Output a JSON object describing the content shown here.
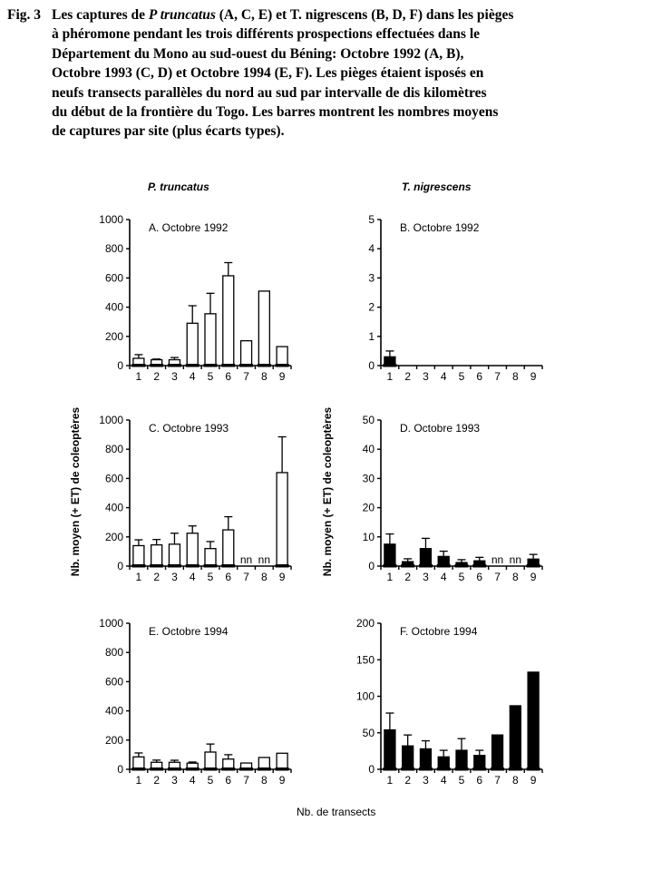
{
  "figure": {
    "caption": {
      "label": "Fig. 3",
      "line1_pre": "Les captures de ",
      "line1_italic": "P truncatus",
      "line1_post": " (A, C, E) et T. nigrescens (B, D, F) dans les pièges",
      "rest": "\nà phéromone pendant les trois différents prospections effectuées dans le\nDépartement du Mono au sud-ouest du Béning: Octobre 1992 (A, B),\nOctobre 1993 (C, D) et Octobre 1994 (E, F). Les pièges étaient isposés en\nneufs transects parallèles du nord au sud par intervalle de dis kilomètres\ndu début de la frontière du Togo. Les barres montrent les nombres moyens\nde captures par site (plus écarts types)."
    },
    "column_titles": {
      "left": "P. truncatus",
      "right": "T. nigrescens"
    },
    "y_axis_label": "Nb. moyen (+ ET) de coleoptères",
    "x_axis_label": "Nb. de transects",
    "colors": {
      "background": "#ffffff",
      "axis": "#000000",
      "bar_open": "#ffffff",
      "bar_filled": "#000000",
      "text": "#000000"
    }
  },
  "chart_data": [
    {
      "id": "A",
      "type": "bar",
      "panel_label": "A. Octobre 1992",
      "species": "P. truncatus",
      "bar_style": "open",
      "categories": [
        "1",
        "2",
        "3",
        "4",
        "5",
        "6",
        "7",
        "8",
        "9"
      ],
      "values": [
        50,
        40,
        40,
        290,
        355,
        615,
        170,
        510,
        130
      ],
      "errors_plus": [
        25,
        5,
        15,
        120,
        140,
        90,
        null,
        null,
        null
      ],
      "ylim": [
        0,
        1000
      ],
      "yticks": [
        0,
        200,
        400,
        600,
        800,
        1000
      ],
      "no_data_label": "nn"
    },
    {
      "id": "B",
      "type": "bar",
      "panel_label": "B. Octobre 1992",
      "species": "T. nigrescens",
      "bar_style": "filled",
      "categories": [
        "1",
        "2",
        "3",
        "4",
        "5",
        "6",
        "7",
        "8",
        "9"
      ],
      "values": [
        0.3,
        0,
        0,
        0,
        0,
        0,
        0,
        0,
        0
      ],
      "errors_plus": [
        0.2,
        null,
        null,
        null,
        null,
        null,
        null,
        null,
        null
      ],
      "ylim": [
        0,
        5
      ],
      "yticks": [
        0,
        1,
        2,
        3,
        4,
        5
      ],
      "no_data_label": "nn"
    },
    {
      "id": "C",
      "type": "bar",
      "panel_label": "C. Octobre 1993",
      "species": "P. truncatus",
      "bar_style": "open",
      "categories": [
        "1",
        "2",
        "3",
        "4",
        "5",
        "6",
        "7",
        "8",
        "9"
      ],
      "values": [
        140,
        145,
        150,
        225,
        120,
        248,
        null,
        null,
        640
      ],
      "errors_plus": [
        40,
        37,
        75,
        50,
        48,
        90,
        null,
        null,
        245
      ],
      "ylim": [
        0,
        1000
      ],
      "yticks": [
        0,
        200,
        400,
        600,
        800,
        1000
      ],
      "no_data_label": "nn"
    },
    {
      "id": "D",
      "type": "bar",
      "panel_label": "D. Octobre 1993",
      "species": "T. nigrescens",
      "bar_style": "filled",
      "categories": [
        "1",
        "2",
        "3",
        "4",
        "5",
        "6",
        "7",
        "8",
        "9"
      ],
      "values": [
        7.5,
        1.5,
        6,
        3.3,
        1.2,
        1.8,
        null,
        null,
        2.4
      ],
      "errors_plus": [
        3.5,
        1,
        3.5,
        1.8,
        1,
        1.2,
        null,
        null,
        1.6
      ],
      "ylim": [
        0,
        50
      ],
      "yticks": [
        0,
        10,
        20,
        30,
        40,
        50
      ],
      "no_data_label": "nn"
    },
    {
      "id": "E",
      "type": "bar",
      "panel_label": "E. Octobre 1994",
      "species": "P. truncatus",
      "bar_style": "open",
      "categories": [
        "1",
        "2",
        "3",
        "4",
        "5",
        "6",
        "7",
        "8",
        "9"
      ],
      "values": [
        85,
        48,
        48,
        42,
        118,
        70,
        43,
        81,
        110
      ],
      "errors_plus": [
        27,
        15,
        14,
        8,
        55,
        30,
        null,
        null,
        null
      ],
      "ylim": [
        0,
        1000
      ],
      "yticks": [
        0,
        200,
        400,
        600,
        800,
        1000
      ],
      "no_data_label": "nn"
    },
    {
      "id": "F",
      "type": "bar",
      "panel_label": "F. Octobre 1994",
      "species": "T. nigrescens",
      "bar_style": "filled",
      "categories": [
        "1",
        "2",
        "3",
        "4",
        "5",
        "6",
        "7",
        "8",
        "9"
      ],
      "values": [
        54,
        32,
        28,
        17,
        26,
        19,
        47,
        87,
        133
      ],
      "errors_plus": [
        23,
        15,
        11,
        9,
        16,
        7,
        null,
        null,
        null
      ],
      "ylim": [
        0,
        200
      ],
      "yticks": [
        0,
        50,
        100,
        150,
        200
      ],
      "no_data_label": "nn"
    }
  ]
}
